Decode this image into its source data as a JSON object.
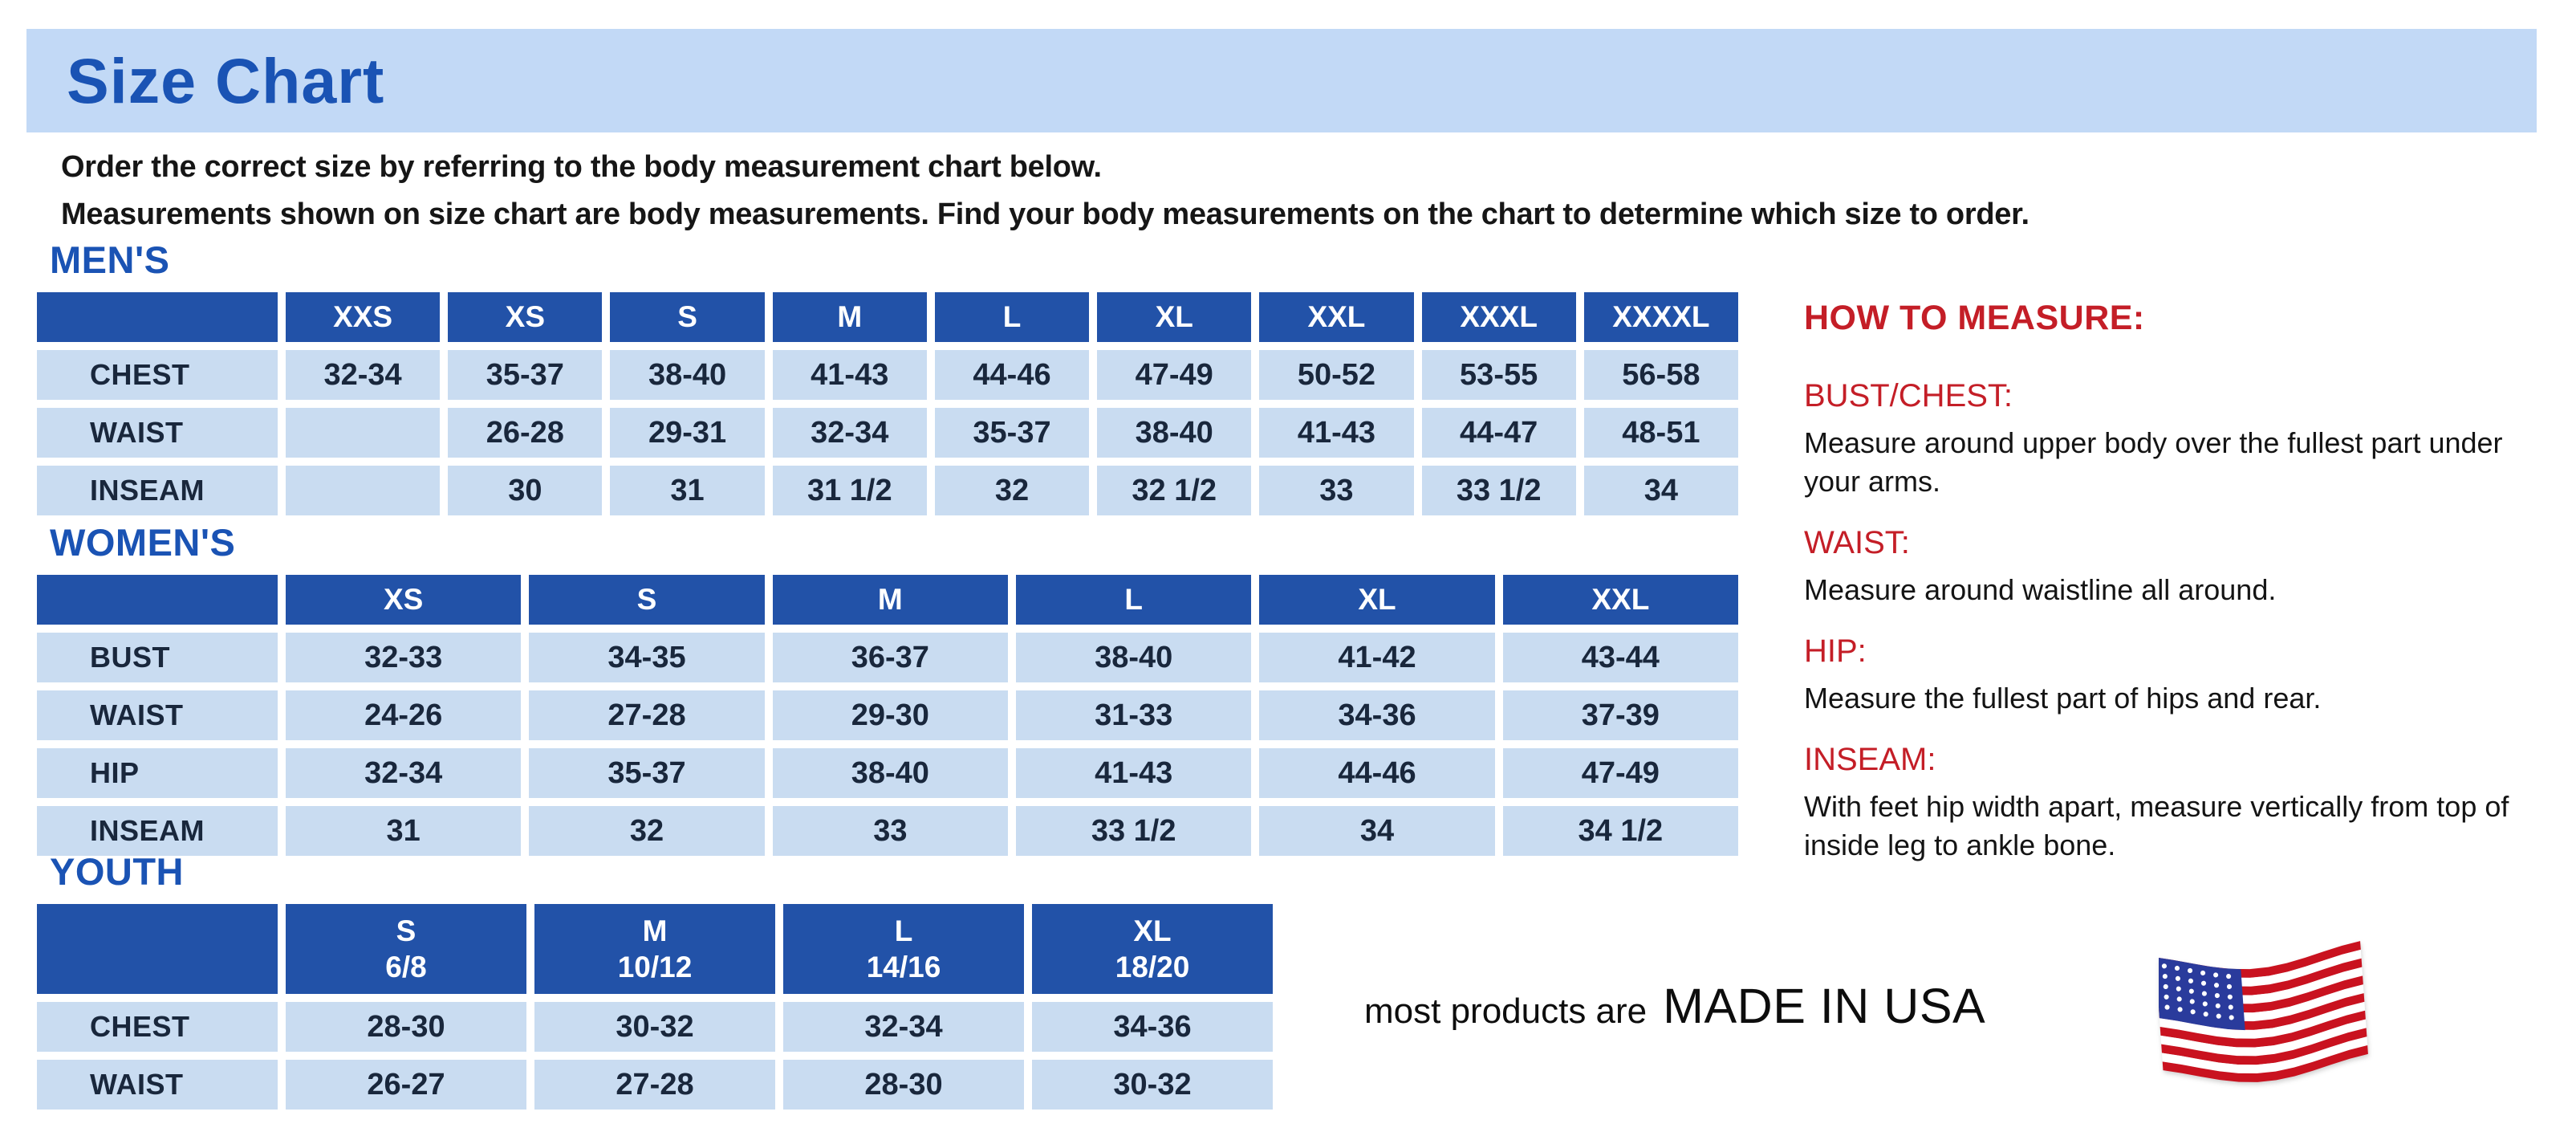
{
  "page": {
    "title": "Size Chart",
    "intro": [
      "Order the correct size by referring to the body measurement chart below.",
      "Measurements shown on size chart are body measurements.  Find your body measurements on the chart to determine which size to order."
    ]
  },
  "colors": {
    "banner_bg": "#c2d9f6",
    "table_header_blue": "#2252a8",
    "table_cell_blue": "#c9dcf1",
    "heading_blue": "#1a53b4",
    "accent_red": "#c41e27",
    "body_text": "#141414",
    "flag_red": "#c9121f",
    "flag_blue": "#2a3b9c"
  },
  "tables": [
    {
      "id": "mens",
      "heading": "MEN'S",
      "columns": [
        "XXS",
        "XS",
        "S",
        "M",
        "L",
        "XL",
        "XXL",
        "XXXL",
        "XXXXL"
      ],
      "rows": [
        {
          "label": "CHEST",
          "values": [
            "32-34",
            "35-37",
            "38-40",
            "41-43",
            "44-46",
            "47-49",
            "50-52",
            "53-55",
            "56-58"
          ]
        },
        {
          "label": "WAIST",
          "values": [
            "",
            "26-28",
            "29-31",
            "32-34",
            "35-37",
            "38-40",
            "41-43",
            "44-47",
            "48-51"
          ]
        },
        {
          "label": "INSEAM",
          "values": [
            "",
            "30",
            "31",
            "31 1/2",
            "32",
            "32 1/2",
            "33",
            "33 1/2",
            "34"
          ]
        }
      ]
    },
    {
      "id": "womens",
      "heading": "WOMEN'S",
      "columns": [
        "XS",
        "S",
        "M",
        "L",
        "XL",
        "XXL"
      ],
      "rows": [
        {
          "label": "BUST",
          "values": [
            "32-33",
            "34-35",
            "36-37",
            "38-40",
            "41-42",
            "43-44"
          ]
        },
        {
          "label": "WAIST",
          "values": [
            "24-26",
            "27-28",
            "29-30",
            "31-33",
            "34-36",
            "37-39"
          ]
        },
        {
          "label": "HIP",
          "values": [
            "32-34",
            "35-37",
            "38-40",
            "41-43",
            "44-46",
            "47-49"
          ]
        },
        {
          "label": "INSEAM",
          "values": [
            "31",
            "32",
            "33",
            "33 1/2",
            "34",
            "34 1/2"
          ]
        }
      ]
    },
    {
      "id": "youth",
      "heading": "YOUTH",
      "columns": [
        "S\n6/8",
        "M\n10/12",
        "L\n14/16",
        "XL\n18/20"
      ],
      "rows": [
        {
          "label": "CHEST",
          "values": [
            "28-30",
            "30-32",
            "32-34",
            "34-36"
          ]
        },
        {
          "label": "WAIST",
          "values": [
            "26-27",
            "27-28",
            "28-30",
            "30-32"
          ]
        }
      ]
    }
  ],
  "how_to_measure": {
    "heading": "HOW TO MEASURE:",
    "sections": [
      {
        "label": "BUST/CHEST:",
        "text": "Measure around upper body over the fullest part under your arms."
      },
      {
        "label": "WAIST:",
        "text": "Measure around waistline all around."
      },
      {
        "label": "HIP:",
        "text": "Measure the fullest part of hips and rear."
      },
      {
        "label": "INSEAM:",
        "text": "With feet hip width apart, measure vertically from top of inside leg to ankle bone."
      }
    ]
  },
  "footer": {
    "prefix": "most products are",
    "emphasis": "MADE IN USA",
    "flag_icon": "usa-flag-icon"
  }
}
